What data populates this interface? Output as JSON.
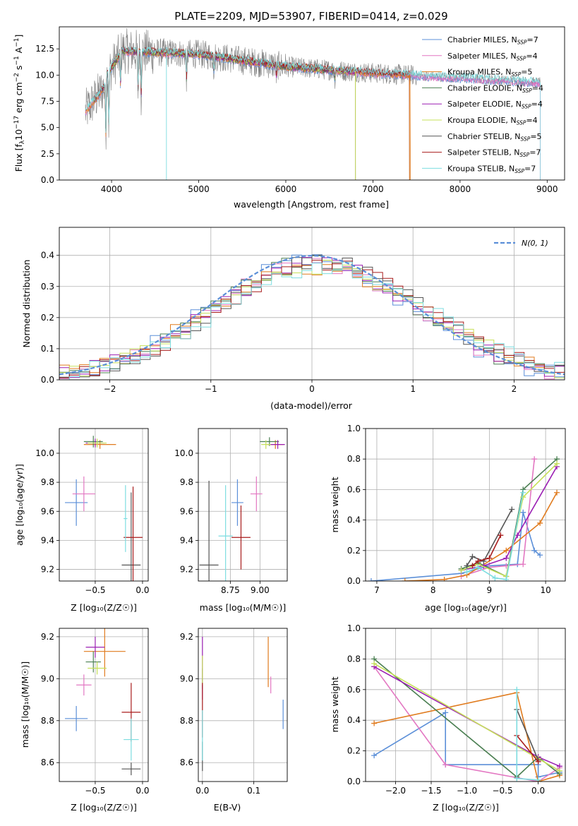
{
  "colors": [
    "#5b8fd8",
    "#e377c2",
    "#e07b1e",
    "#4b7f52",
    "#9b1fb3",
    "#c6e05a",
    "#555555",
    "#a81c1c",
    "#7ddde0"
  ],
  "chart_data": [
    {
      "id": "spectrum",
      "type": "line",
      "title": "PLATE=2209, MJD=53907, FIBERID=0414, z=0.029",
      "xlabel": "wavelength [Angstrom, rest frame]",
      "ylabel_main": "Flux [f",
      "ylabel_sub": "λ",
      "ylabel_rest": "10",
      "ylabel_exp": "−17",
      "ylabel_units": " erg cm",
      "ylabel_e2": "−2",
      "ylabel_s": " s",
      "ylabel_e1": "−1",
      "ylabel_A": " A",
      "ylabel_e3": "−1",
      "ylabel_end": "]",
      "xlim": [
        3400,
        9200
      ],
      "ylim": [
        0,
        14.6
      ],
      "x_ticks": [
        4000,
        5000,
        6000,
        7000,
        8000,
        9000
      ],
      "y_ticks": [
        0.0,
        2.5,
        5.0,
        7.5,
        10.0,
        12.5
      ],
      "observed_range": [
        3700,
        8920
      ],
      "legend": [
        {
          "prefix": "Chabrier MILES, N",
          "sub": "SSP",
          "suffix": "=7"
        },
        {
          "prefix": "Salpeter MILES, N",
          "sub": "SSP",
          "suffix": "=4"
        },
        {
          "prefix": "Kroupa MILES, N",
          "sub": "SSP",
          "suffix": "=5"
        },
        {
          "prefix": "Chabrier ELODIE, N",
          "sub": "SSP",
          "suffix": "=4"
        },
        {
          "prefix": "Salpeter ELODIE, N",
          "sub": "SSP",
          "suffix": "=4"
        },
        {
          "prefix": "Kroupa ELODIE, N",
          "sub": "SSP",
          "suffix": "=4"
        },
        {
          "prefix": "Chabrier STELIB, N",
          "sub": "SSP",
          "suffix": "=5"
        },
        {
          "prefix": "Salpeter STELIB, N",
          "sub": "SSP",
          "suffix": "=7"
        },
        {
          "prefix": "Kroupa STELIB, N",
          "sub": "SSP",
          "suffix": "=7"
        }
      ],
      "model_ranges": [
        [
          3700,
          8920
        ],
        [
          3700,
          8920
        ],
        [
          3700,
          7430
        ],
        [
          3900,
          6800
        ],
        [
          3900,
          6800
        ],
        [
          3900,
          6800
        ],
        [
          3800,
          7420
        ],
        [
          3800,
          7420
        ],
        [
          3700,
          8920
        ]
      ]
    },
    {
      "id": "residuals",
      "type": "histogram",
      "xlabel": "(data-model)/error",
      "ylabel": "Normed distribution",
      "xlim": [
        -2.5,
        2.5
      ],
      "ylim": [
        0,
        0.49
      ],
      "x_ticks": [
        -2,
        -1,
        0,
        1,
        2
      ],
      "y_ticks": [
        0.0,
        0.1,
        0.2,
        0.3,
        0.4
      ],
      "bin_width": 0.1,
      "gaussian_label": "N(0, 1)",
      "grid": true
    },
    {
      "id": "age-vs-metallicity",
      "type": "scatter",
      "xlabel": "Z [log₁₀(Z/Z☉)]",
      "ylabel": "age  [log₁₀(age/yr)]",
      "xlim": [
        -0.88,
        0.06
      ],
      "ylim": [
        9.12,
        10.17
      ],
      "x_ticks": [
        -0.5,
        0.0
      ],
      "x_tick_labels": [
        "−0.5",
        "0.0"
      ],
      "y_ticks": [
        9.2,
        9.4,
        9.6,
        9.8,
        10.0
      ],
      "points": [
        {
          "c": 0,
          "x": -0.7,
          "xerr": 0.12,
          "y": 9.66,
          "yerr": 0.16
        },
        {
          "c": 1,
          "x": -0.62,
          "xerr": 0.12,
          "y": 9.72,
          "yerr": 0.12
        },
        {
          "c": 2,
          "x": -0.45,
          "xerr": 0.17,
          "y": 10.06,
          "yerr": 0.03
        },
        {
          "c": 3,
          "x": -0.52,
          "xerr": 0.1,
          "y": 10.08,
          "yerr": 0.04
        },
        {
          "c": 4,
          "x": -0.5,
          "xerr": 0.1,
          "y": 10.07,
          "yerr": 0.03
        },
        {
          "c": 5,
          "x": -0.48,
          "xerr": 0.1,
          "y": 10.07,
          "yerr": 0.03
        },
        {
          "c": 6,
          "x": -0.12,
          "xerr": 0.1,
          "y": 9.23,
          "yerr": 0.5
        },
        {
          "c": 7,
          "x": -0.1,
          "xerr": 0.1,
          "y": 9.42,
          "yerr": 0.35
        },
        {
          "c": 8,
          "x": -0.18,
          "xerr": 0.02,
          "y": 9.55,
          "yerr": 0.23
        }
      ]
    },
    {
      "id": "age-vs-mass",
      "type": "scatter",
      "xlabel": "mass [log₁₀(M/M☉)]",
      "ylabel": "",
      "xlim": [
        8.48,
        9.23
      ],
      "ylim": [
        9.12,
        10.17
      ],
      "x_ticks": [
        8.75,
        9.0
      ],
      "x_tick_labels": [
        "8.75",
        "9.00"
      ],
      "y_ticks": [
        9.2,
        9.4,
        9.6,
        9.8,
        10.0
      ],
      "points": [
        {
          "c": 0,
          "x": 8.81,
          "xerr": 0.05,
          "y": 9.66,
          "yerr": 0.16
        },
        {
          "c": 1,
          "x": 8.97,
          "xerr": 0.05,
          "y": 9.72,
          "yerr": 0.12
        },
        {
          "c": 2,
          "x": 9.13,
          "xerr": 0.07,
          "y": 10.06,
          "yerr": 0.03
        },
        {
          "c": 3,
          "x": 9.08,
          "xerr": 0.08,
          "y": 10.08,
          "yerr": 0.03
        },
        {
          "c": 4,
          "x": 9.15,
          "xerr": 0.06,
          "y": 10.06,
          "yerr": 0.03
        },
        {
          "c": 5,
          "x": 9.05,
          "xerr": 0.04,
          "y": 10.06,
          "yerr": 0.03
        },
        {
          "c": 6,
          "x": 8.57,
          "xerr": 0.08,
          "y": 9.23,
          "yerr": 0.58
        },
        {
          "c": 7,
          "x": 8.84,
          "xerr": 0.08,
          "y": 9.42,
          "yerr": 0.22
        },
        {
          "c": 8,
          "x": 8.71,
          "xerr": 0.06,
          "y": 9.43,
          "yerr": 0.35
        }
      ]
    },
    {
      "id": "weight-vs-age",
      "type": "line",
      "xlabel": "age  [log₁₀(age/yr)]",
      "ylabel": "mass weight",
      "xlim": [
        6.8,
        10.35
      ],
      "ylim": [
        0,
        1.0
      ],
      "x_ticks": [
        7,
        8,
        9,
        10
      ],
      "y_ticks": [
        0.0,
        0.2,
        0.4,
        0.6,
        0.8,
        1.0
      ],
      "grid": true,
      "series": [
        {
          "c": 0,
          "x": [
            6.9,
            8.5,
            9.0,
            9.5,
            9.6,
            9.8,
            9.9
          ],
          "y": [
            0.0,
            0.05,
            0.1,
            0.11,
            0.45,
            0.2,
            0.17
          ]
        },
        {
          "c": 1,
          "x": [
            8.5,
            9.0,
            9.3,
            9.6,
            9.8
          ],
          "y": [
            0.03,
            0.09,
            0.1,
            0.11,
            0.8
          ]
        },
        {
          "c": 2,
          "x": [
            7.5,
            8.2,
            8.6,
            9.3,
            9.9,
            10.2
          ],
          "y": [
            0.0,
            0.01,
            0.04,
            0.2,
            0.38,
            0.58
          ]
        },
        {
          "c": 3,
          "x": [
            8.5,
            8.8,
            9.3,
            9.6,
            10.2
          ],
          "y": [
            0.08,
            0.12,
            0.03,
            0.6,
            0.8
          ]
        },
        {
          "c": 4,
          "x": [
            8.5,
            8.9,
            9.3,
            9.5,
            10.2
          ],
          "y": [
            0.07,
            0.1,
            0.15,
            0.3,
            0.75
          ]
        },
        {
          "c": 5,
          "x": [
            8.5,
            8.8,
            9.3,
            9.6,
            10.2
          ],
          "y": [
            0.07,
            0.11,
            0.03,
            0.55,
            0.77
          ]
        },
        {
          "c": 6,
          "x": [
            8.6,
            8.7,
            8.9,
            9.4
          ],
          "y": [
            0.1,
            0.16,
            0.13,
            0.47
          ]
        },
        {
          "c": 7,
          "x": [
            8.7,
            8.8,
            9.0,
            9.2
          ],
          "y": [
            0.1,
            0.13,
            0.15,
            0.3
          ]
        },
        {
          "c": 8,
          "x": [
            8.6,
            8.8,
            9.1,
            9.3,
            9.6
          ],
          "y": [
            0.06,
            0.09,
            0.02,
            0.01,
            0.58
          ]
        }
      ]
    },
    {
      "id": "mass-vs-metallicity",
      "type": "scatter",
      "xlabel": "Z [log₁₀(Z/Z☉)]",
      "ylabel": "mass [log₁₀(M/M☉)]",
      "xlim": [
        -0.88,
        0.06
      ],
      "ylim": [
        8.51,
        9.24
      ],
      "x_ticks": [
        -0.5,
        0.0
      ],
      "x_tick_labels": [
        "−0.5",
        "0.0"
      ],
      "y_ticks": [
        8.6,
        8.8,
        9.0,
        9.2
      ],
      "points": [
        {
          "c": 0,
          "x": -0.7,
          "xerr": 0.12,
          "y": 8.81,
          "yerr": 0.06
        },
        {
          "c": 1,
          "x": -0.62,
          "xerr": 0.08,
          "y": 8.97,
          "yerr": 0.05
        },
        {
          "c": 2,
          "x": -0.4,
          "xerr": 0.22,
          "y": 9.13,
          "yerr": 0.12
        },
        {
          "c": 3,
          "x": -0.52,
          "xerr": 0.08,
          "y": 9.08,
          "yerr": 0.05
        },
        {
          "c": 4,
          "x": -0.5,
          "xerr": 0.1,
          "y": 9.15,
          "yerr": 0.05
        },
        {
          "c": 5,
          "x": -0.48,
          "xerr": 0.1,
          "y": 9.05,
          "yerr": 0.03
        },
        {
          "c": 6,
          "x": -0.12,
          "xerr": 0.1,
          "y": 8.57,
          "yerr": 0.03
        },
        {
          "c": 7,
          "x": -0.12,
          "xerr": 0.1,
          "y": 8.84,
          "yerr": 0.14
        },
        {
          "c": 8,
          "x": -0.12,
          "xerr": 0.08,
          "y": 8.71,
          "yerr": 0.1
        }
      ]
    },
    {
      "id": "mass-vs-ebv",
      "type": "scatter",
      "xlabel": "E(B-V)",
      "ylabel": "",
      "xlim": [
        -0.008,
        0.165
      ],
      "ylim": [
        8.51,
        9.24
      ],
      "x_ticks": [
        0.0,
        0.1
      ],
      "x_tick_labels": [
        "0.0",
        "0.1"
      ],
      "y_ticks": [
        8.6,
        8.8,
        9.0,
        9.2
      ],
      "points": [
        {
          "c": 0,
          "x": 0.157,
          "y": 8.83,
          "yerr": 0.07
        },
        {
          "c": 1,
          "x": 0.133,
          "y": 8.97,
          "yerr": 0.04
        },
        {
          "c": 2,
          "x": 0.128,
          "y": 9.08,
          "yerr": 0.12
        },
        {
          "c": 3,
          "x": 0.0,
          "y": 9.0,
          "yerr": 0.05
        },
        {
          "c": 4,
          "x": 0.0,
          "y": 9.05,
          "yerr": 0.15
        },
        {
          "c": 5,
          "x": 0.0,
          "y": 9.04,
          "yerr": 0.07
        },
        {
          "c": 6,
          "x": 0.0,
          "y": 8.63,
          "yerr": 0.07
        },
        {
          "c": 7,
          "x": 0.0,
          "y": 8.85,
          "yerr": 0.13
        },
        {
          "c": 8,
          "x": 0.0,
          "y": 8.73,
          "yerr": 0.12
        }
      ]
    },
    {
      "id": "weight-vs-metallicity",
      "type": "line",
      "xlabel": "Z [log₁₀(Z/Z☉)]",
      "ylabel": "mass weight",
      "xlim": [
        -2.42,
        0.38
      ],
      "ylim": [
        0,
        1.0
      ],
      "x_ticks": [
        -2.0,
        -1.5,
        -1.0,
        -0.5,
        0.0
      ],
      "x_tick_labels": [
        "−2.0",
        "−1.5",
        "−1.0",
        "−0.5",
        "0.0"
      ],
      "y_ticks": [
        0.0,
        0.2,
        0.4,
        0.6,
        0.8,
        1.0
      ],
      "grid": true,
      "series": [
        {
          "c": 0,
          "x": [
            -2.3,
            -1.3,
            -1.3,
            0.0,
            0.0,
            0.3
          ],
          "y": [
            0.17,
            0.45,
            0.11,
            0.11,
            0.03,
            0.06
          ]
        },
        {
          "c": 1,
          "x": [
            -2.3,
            -1.3,
            0.0,
            0.3
          ],
          "y": [
            0.75,
            0.11,
            0.0,
            0.09
          ]
        },
        {
          "c": 2,
          "x": [
            -2.3,
            -0.3,
            0.0,
            0.3
          ],
          "y": [
            0.38,
            0.58,
            0.0,
            0.04
          ]
        },
        {
          "c": 3,
          "x": [
            -2.3,
            -0.3,
            0.0,
            0.3
          ],
          "y": [
            0.8,
            0.03,
            0.16,
            0.05
          ]
        },
        {
          "c": 4,
          "x": [
            -2.3,
            0.0,
            0.3
          ],
          "y": [
            0.75,
            0.16,
            0.1
          ]
        },
        {
          "c": 5,
          "x": [
            -2.3,
            0.0,
            0.3
          ],
          "y": [
            0.77,
            0.15,
            0.07
          ]
        },
        {
          "c": 6,
          "x": [
            -0.3,
            0.0
          ],
          "y": [
            0.47,
            0.14
          ]
        },
        {
          "c": 7,
          "x": [
            -0.3,
            0.0
          ],
          "y": [
            0.3,
            0.13
          ]
        },
        {
          "c": 8,
          "x": [
            -0.3,
            -0.3,
            0.0
          ],
          "y": [
            0.6,
            0.02,
            0.01
          ]
        }
      ]
    }
  ]
}
